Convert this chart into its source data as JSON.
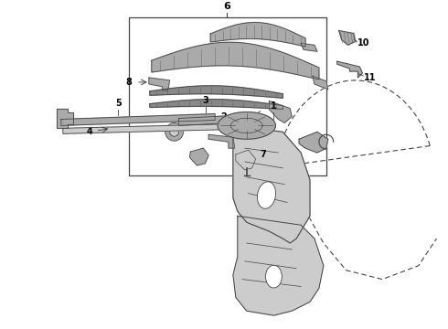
{
  "bg_color": "#ffffff",
  "line_color": "#444444",
  "label_color": "#000000",
  "fill_dark": "#888888",
  "fill_mid": "#aaaaaa",
  "fill_light": "#cccccc",
  "fig_width": 4.9,
  "fig_height": 3.6,
  "dpi": 100
}
